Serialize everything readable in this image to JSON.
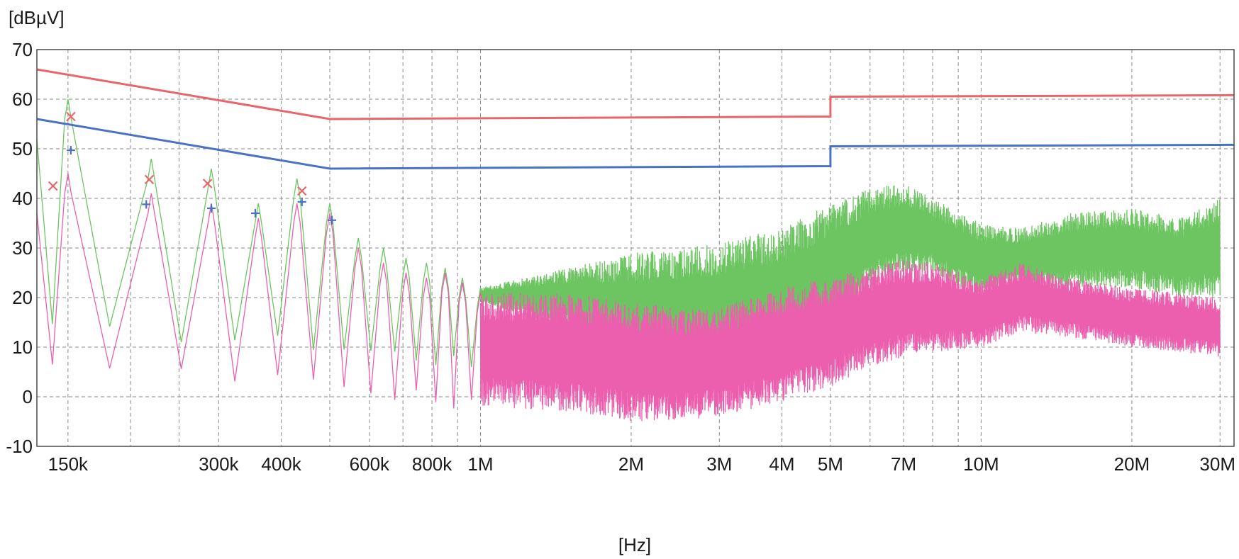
{
  "chart_data": {
    "type": "line",
    "title": "",
    "ylabel": "[dBµV]",
    "xlabel": "[Hz]",
    "x_scale": "log",
    "xlim": [
      130000,
      32000000
    ],
    "ylim": [
      -10,
      70
    ],
    "grid": true,
    "yticks": [
      70,
      60,
      50,
      40,
      30,
      20,
      10,
      0,
      -10
    ],
    "xticks": [
      {
        "value": 150000,
        "label": "150k"
      },
      {
        "value": 300000,
        "label": "300k"
      },
      {
        "value": 400000,
        "label": "400k"
      },
      {
        "value": 600000,
        "label": "600k"
      },
      {
        "value": 800000,
        "label": "800k"
      },
      {
        "value": 1000000,
        "label": "1M"
      },
      {
        "value": 2000000,
        "label": "2M"
      },
      {
        "value": 3000000,
        "label": "3M"
      },
      {
        "value": 4000000,
        "label": "4M"
      },
      {
        "value": 5000000,
        "label": "5M"
      },
      {
        "value": 7000000,
        "label": "7M"
      },
      {
        "value": 10000000,
        "label": "10M"
      },
      {
        "value": 20000000,
        "label": "20M"
      },
      {
        "value": 30000000,
        "label": "30M"
      }
    ],
    "extra_gridlines_x": [
      200000,
      250000,
      500000,
      700000,
      900000,
      6000000,
      8000000,
      9000000
    ],
    "colors": {
      "limit_qp": "#e8666b",
      "limit_avg": "#4a72c4",
      "trace_peak": "#6cc561",
      "trace_avg": "#ec5fae",
      "marker_qp": "#e8666b",
      "marker_avg": "#4a72c4",
      "axes": "#4a4a4a",
      "grid": "#8a8a8a"
    },
    "series": [
      {
        "kind": "limit",
        "x": [
          130000,
          500000,
          500000,
          5000000,
          5000000,
          32000000
        ],
        "y": [
          66,
          56,
          56,
          56.5,
          60.5,
          60.8
        ]
      },
      {
        "kind": "limit",
        "x": [
          130000,
          500000,
          500000,
          5000000,
          5000000,
          32000000
        ],
        "y": [
          56,
          46,
          46,
          46.5,
          50.5,
          50.8
        ]
      },
      {
        "kind": "trace",
        "harmonic_x": [
          150000,
          220000,
          290000,
          360000,
          430000,
          500000,
          570000,
          640000,
          710000,
          780000,
          850000,
          920000,
          1000000
        ],
        "harmonic_peaks": [
          60,
          48,
          46,
          39,
          44,
          39,
          32,
          30,
          28,
          27,
          26,
          24,
          22
        ],
        "valley": 12,
        "envelope_x": [
          1000000,
          1500000,
          2000000,
          2500000,
          3000000,
          4000000,
          5000000,
          6000000,
          7000000,
          8000000,
          10000000,
          12000000,
          15000000,
          20000000,
          25000000,
          30000000
        ],
        "envelope_max": [
          22,
          26,
          29,
          30,
          31,
          34,
          39,
          42,
          43,
          40,
          35,
          34,
          37,
          38,
          36,
          40
        ],
        "envelope_min": [
          19,
          14,
          5,
          5,
          5,
          6,
          12,
          22,
          25,
          25,
          20,
          22,
          22,
          22,
          20,
          20
        ]
      },
      {
        "kind": "trace",
        "harmonic_x": [
          150000,
          220000,
          290000,
          360000,
          430000,
          500000,
          570000,
          640000,
          710000,
          780000,
          850000,
          920000,
          1000000
        ],
        "harmonic_peaks": [
          45,
          41,
          39,
          36,
          39,
          37,
          30,
          27,
          25,
          24,
          25,
          23,
          21
        ],
        "valley": 4,
        "envelope_x": [
          1000000,
          1500000,
          2000000,
          2500000,
          3000000,
          4000000,
          5000000,
          6000000,
          7000000,
          8000000,
          10000000,
          12000000,
          15000000,
          20000000,
          25000000,
          30000000
        ],
        "envelope_max": [
          21,
          21,
          19,
          18,
          18,
          22,
          24,
          26,
          28,
          27,
          24,
          27,
          24,
          22,
          21,
          20
        ],
        "envelope_min": [
          -2,
          -3,
          -5,
          -5,
          -4,
          -1,
          2,
          6,
          8,
          9,
          10,
          13,
          12,
          10,
          9,
          8
        ]
      }
    ],
    "markers": [
      {
        "shape": "x",
        "color_key": "marker_qp",
        "points": [
          [
            140000,
            42.5
          ],
          [
            152000,
            56.5
          ],
          [
            218000,
            43.8
          ],
          [
            285000,
            43.0
          ],
          [
            440000,
            41.5
          ]
        ]
      },
      {
        "shape": "+",
        "color_key": "marker_avg",
        "points": [
          [
            152000,
            49.7
          ],
          [
            215000,
            38.8
          ],
          [
            290000,
            38.0
          ],
          [
            355000,
            37.0
          ],
          [
            440000,
            39.3
          ],
          [
            505000,
            35.6
          ]
        ]
      }
    ]
  }
}
